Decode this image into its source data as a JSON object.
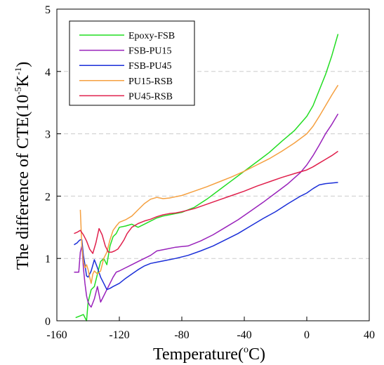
{
  "chart_data": {
    "type": "line",
    "xlabel": "Temperature(",
    "xlabel_degree": "o",
    "xlabel_unit": "C)",
    "ylabel": "The difference of CTE(10",
    "ylabel_exp": "-5",
    "ylabel_unit": "K",
    "ylabel_unit_exp": "-1",
    "ylabel_close": ")",
    "xlim": [
      -160,
      40
    ],
    "ylim": [
      0,
      5
    ],
    "xticks": [
      -160,
      -120,
      -80,
      -40,
      0,
      40
    ],
    "yticks": [
      0,
      1,
      2,
      3,
      4,
      5
    ],
    "grid": "horizontal dashed",
    "legend_position": "top-left",
    "series": [
      {
        "name": "Epoxy-FSB",
        "color": "#22dd22",
        "x": [
          -148,
          -145,
          -143,
          -141,
          -140,
          -138,
          -136,
          -134,
          -132,
          -130,
          -128,
          -126,
          -124,
          -122,
          -120,
          -116,
          -112,
          -108,
          -104,
          -100,
          -96,
          -92,
          -88,
          -84,
          -80,
          -72,
          -64,
          -56,
          -48,
          -40,
          -32,
          -24,
          -16,
          -8,
          0,
          4,
          8,
          12,
          16,
          20
        ],
        "y": [
          0.05,
          0.08,
          0.1,
          0.0,
          0.3,
          0.5,
          0.55,
          0.75,
          0.95,
          1.0,
          0.9,
          1.2,
          1.35,
          1.4,
          1.5,
          1.52,
          1.55,
          1.5,
          1.55,
          1.6,
          1.65,
          1.68,
          1.7,
          1.72,
          1.74,
          1.82,
          1.95,
          2.1,
          2.25,
          2.4,
          2.55,
          2.7,
          2.88,
          3.05,
          3.28,
          3.45,
          3.7,
          3.95,
          4.25,
          4.6
        ]
      },
      {
        "name": "FSB-PU15",
        "color": "#9922bb",
        "x": [
          -149,
          -147,
          -146,
          -145,
          -144,
          -143,
          -142,
          -141,
          -140,
          -139,
          -138,
          -136,
          -134,
          -132,
          -130,
          -128,
          -126,
          -124,
          -122,
          -120,
          -116,
          -112,
          -108,
          -104,
          -100,
          -96,
          -90,
          -84,
          -76,
          -68,
          -60,
          -52,
          -44,
          -36,
          -28,
          -20,
          -12,
          -4,
          0,
          4,
          8,
          12,
          16,
          20
        ],
        "y": [
          0.78,
          0.78,
          0.78,
          1.1,
          1.2,
          0.85,
          0.6,
          0.4,
          0.3,
          0.25,
          0.22,
          0.35,
          0.55,
          0.3,
          0.4,
          0.5,
          0.6,
          0.7,
          0.78,
          0.8,
          0.85,
          0.9,
          0.95,
          1.0,
          1.05,
          1.12,
          1.15,
          1.18,
          1.2,
          1.28,
          1.38,
          1.5,
          1.62,
          1.76,
          1.9,
          2.05,
          2.2,
          2.38,
          2.5,
          2.65,
          2.82,
          3.0,
          3.15,
          3.32
        ]
      },
      {
        "name": "FSB-PU45",
        "color": "#1a2ed8",
        "x": [
          -149,
          -147,
          -146,
          -145,
          -144,
          -143,
          -142,
          -141,
          -140,
          -138,
          -136,
          -134,
          -132,
          -130,
          -128,
          -126,
          -124,
          -120,
          -116,
          -112,
          -108,
          -104,
          -100,
          -96,
          -90,
          -84,
          -76,
          -68,
          -60,
          -52,
          -44,
          -36,
          -28,
          -20,
          -12,
          -4,
          0,
          4,
          8,
          12,
          16,
          20
        ],
        "y": [
          1.22,
          1.25,
          1.28,
          1.3,
          1.3,
          1.05,
          0.9,
          0.72,
          0.7,
          0.8,
          0.98,
          0.85,
          0.7,
          0.6,
          0.5,
          0.52,
          0.55,
          0.6,
          0.68,
          0.75,
          0.82,
          0.88,
          0.92,
          0.94,
          0.97,
          1.0,
          1.05,
          1.12,
          1.2,
          1.3,
          1.4,
          1.52,
          1.64,
          1.75,
          1.88,
          2.0,
          2.05,
          2.12,
          2.18,
          2.2,
          2.21,
          2.22
        ]
      },
      {
        "name": "PU15-RSB",
        "color": "#f5a040",
        "x": [
          -145,
          -144,
          -143,
          -142,
          -141,
          -140,
          -139,
          -138,
          -137,
          -136,
          -134,
          -132,
          -130,
          -128,
          -126,
          -124,
          -122,
          -120,
          -116,
          -112,
          -108,
          -104,
          -100,
          -96,
          -92,
          -88,
          -84,
          -80,
          -72,
          -64,
          -56,
          -48,
          -40,
          -32,
          -24,
          -16,
          -8,
          0,
          4,
          8,
          12,
          16,
          20
        ],
        "y": [
          1.78,
          1.2,
          0.95,
          0.85,
          0.9,
          0.82,
          0.7,
          0.6,
          0.75,
          0.8,
          0.75,
          0.8,
          1.0,
          1.1,
          1.3,
          1.45,
          1.52,
          1.58,
          1.62,
          1.68,
          1.78,
          1.88,
          1.95,
          1.98,
          1.96,
          1.97,
          1.99,
          2.01,
          2.08,
          2.15,
          2.23,
          2.31,
          2.4,
          2.5,
          2.6,
          2.72,
          2.85,
          3.0,
          3.12,
          3.28,
          3.45,
          3.62,
          3.78
        ]
      },
      {
        "name": "PU45-RSB",
        "color": "#e0204c",
        "x": [
          -149,
          -147,
          -145,
          -143,
          -141,
          -139,
          -137,
          -135,
          -133,
          -131,
          -129,
          -127,
          -125,
          -123,
          -121,
          -119,
          -117,
          -115,
          -112,
          -108,
          -104,
          -100,
          -96,
          -92,
          -88,
          -84,
          -80,
          -72,
          -64,
          -56,
          -48,
          -40,
          -32,
          -24,
          -16,
          -8,
          0,
          4,
          8,
          12,
          16,
          20
        ],
        "y": [
          1.4,
          1.42,
          1.45,
          1.38,
          1.28,
          1.15,
          1.08,
          1.25,
          1.48,
          1.38,
          1.2,
          1.1,
          1.1,
          1.12,
          1.15,
          1.22,
          1.3,
          1.4,
          1.5,
          1.56,
          1.6,
          1.63,
          1.67,
          1.7,
          1.72,
          1.73,
          1.75,
          1.8,
          1.87,
          1.94,
          2.01,
          2.08,
          2.16,
          2.23,
          2.3,
          2.36,
          2.42,
          2.47,
          2.53,
          2.59,
          2.65,
          2.72
        ]
      }
    ]
  }
}
